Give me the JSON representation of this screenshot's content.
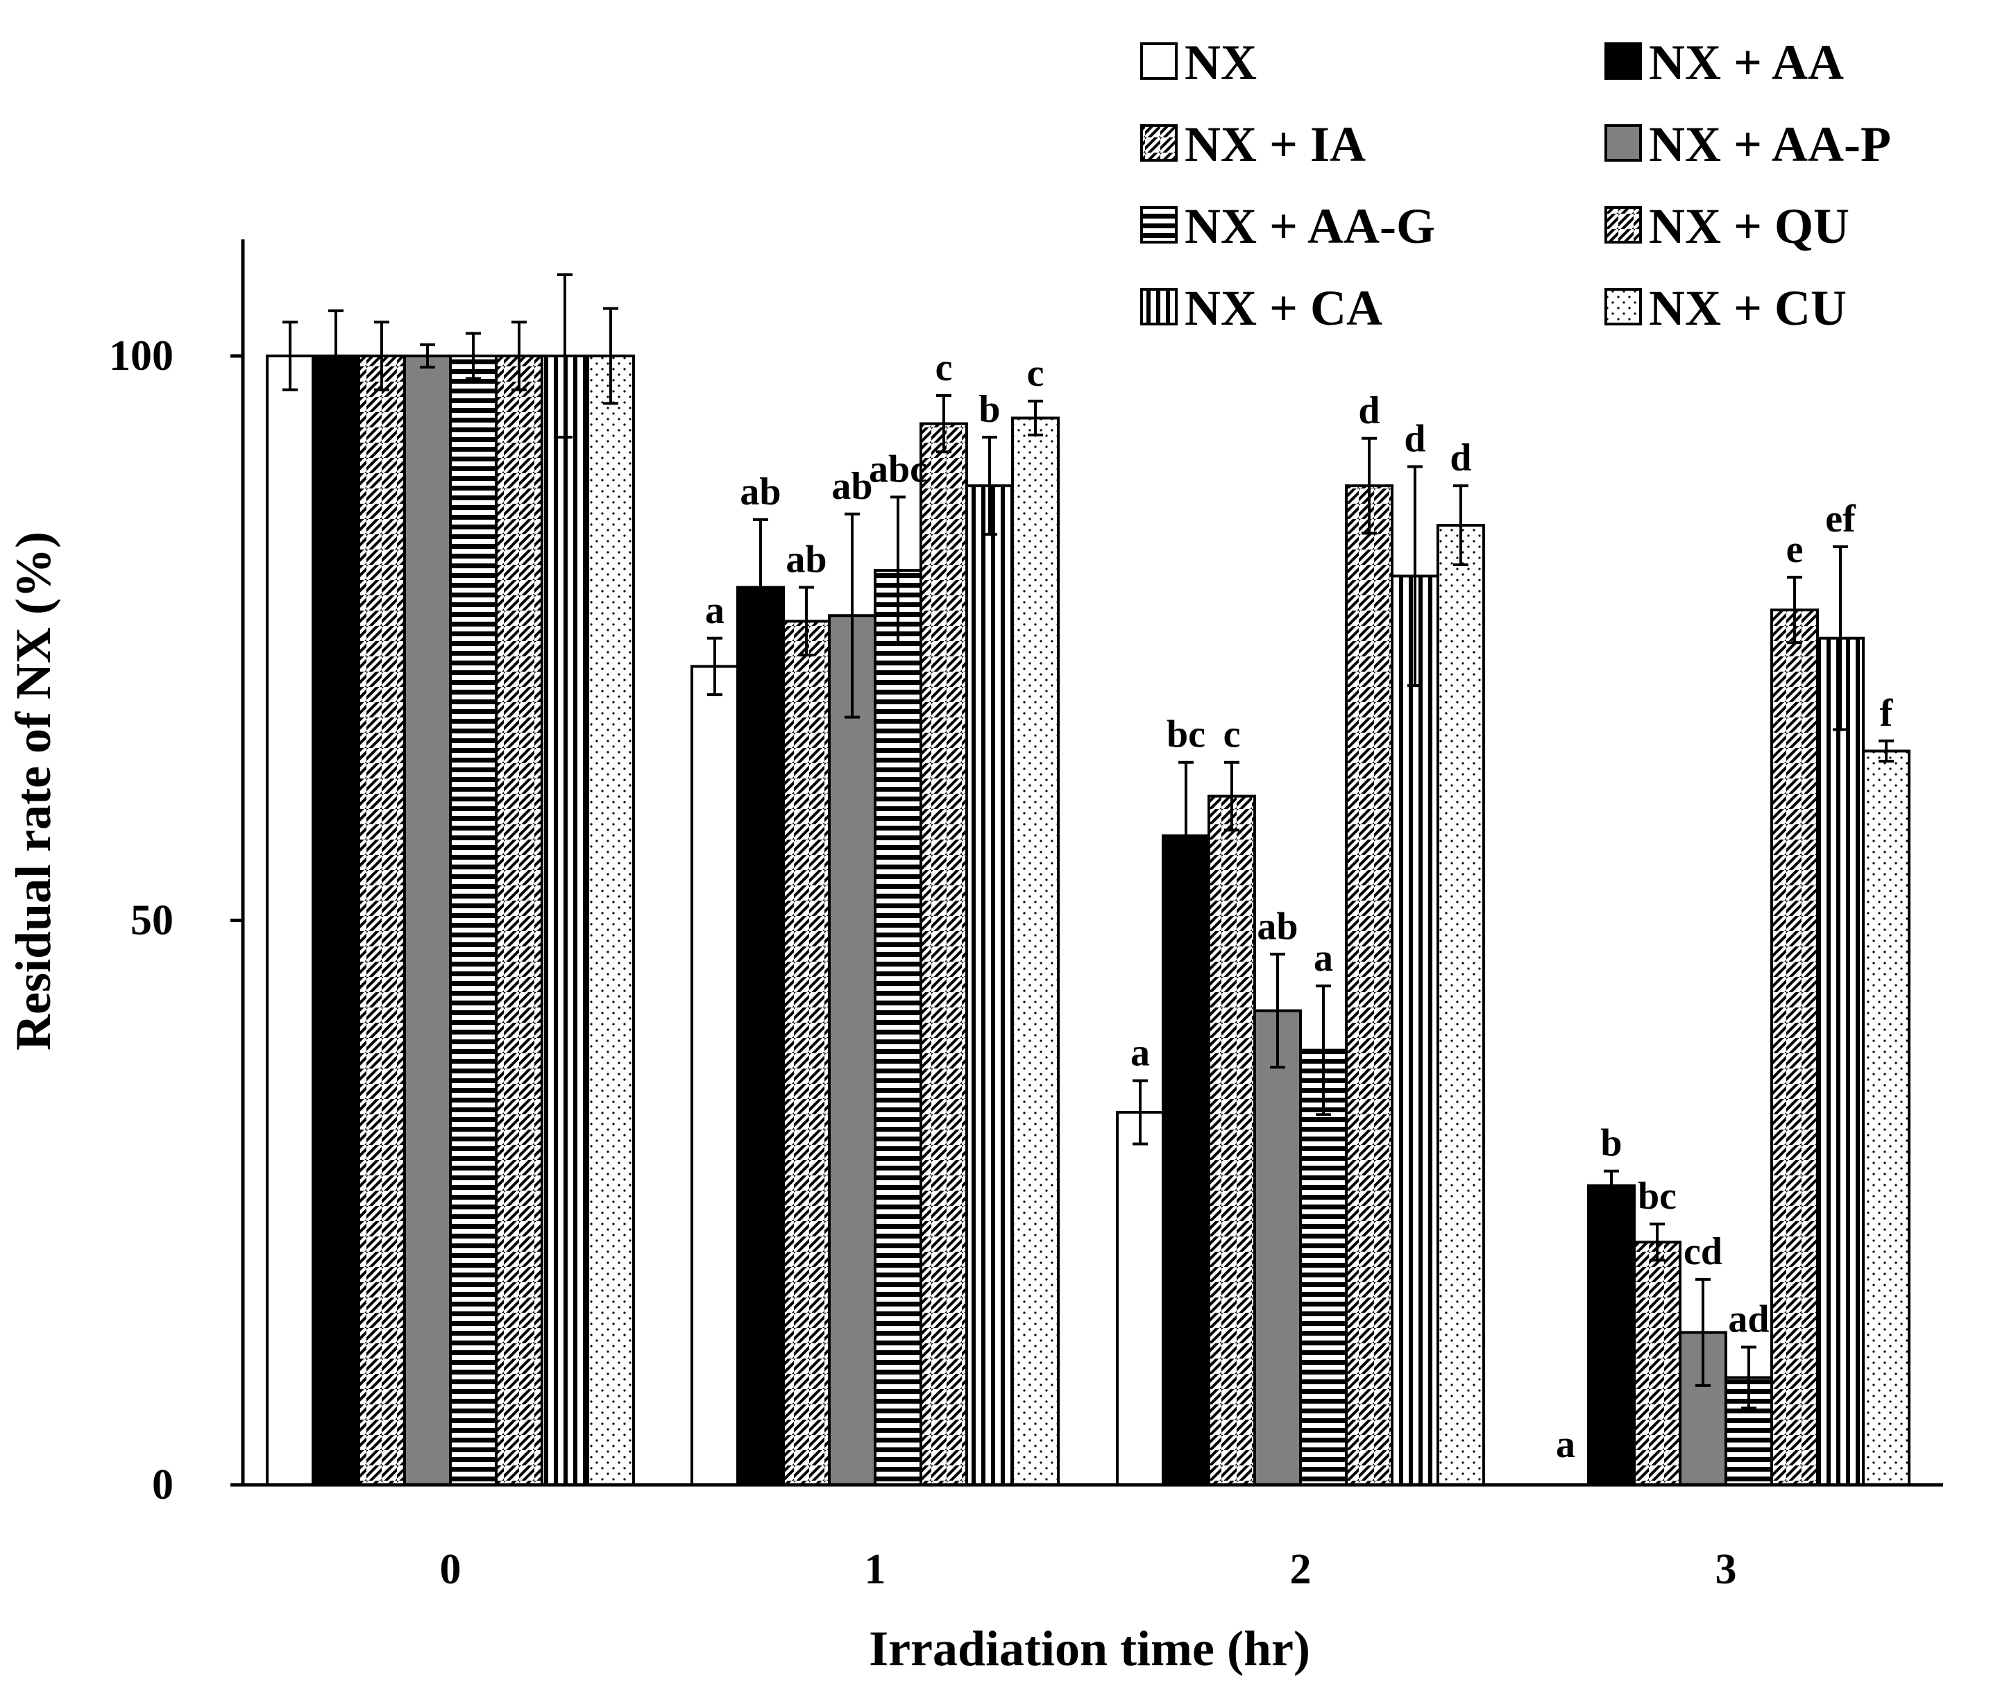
{
  "chart_data": {
    "type": "bar",
    "title": "",
    "xlabel": "Irradiation  time (hr)",
    "ylabel": "Residual rate of NX (%)",
    "ylim": [
      0,
      110
    ],
    "yticks": [
      0,
      50,
      100
    ],
    "grid": false,
    "legend_position": "top-right",
    "categories": [
      "0",
      "1",
      "2",
      "3"
    ],
    "series": [
      {
        "name": "NX",
        "pattern": "white",
        "values": [
          100,
          72.5,
          33,
          0
        ],
        "errors": [
          3,
          2.5,
          2.8,
          0
        ],
        "labels": [
          "",
          "a",
          "a",
          "a"
        ]
      },
      {
        "name": "NX + AA",
        "pattern": "black",
        "values": [
          100,
          79.5,
          57.5,
          26.5
        ],
        "errors": [
          4,
          6,
          6.5,
          1.3
        ],
        "labels": [
          "",
          "ab",
          "bc",
          "b"
        ]
      },
      {
        "name": "NX + IA",
        "pattern": "diagonal-up",
        "values": [
          100,
          76.5,
          61,
          21.5
        ],
        "errors": [
          3,
          3,
          3,
          1.6
        ],
        "labels": [
          "",
          "ab",
          "c",
          "bc"
        ]
      },
      {
        "name": "NX + AA-P",
        "pattern": "gray",
        "values": [
          100,
          77,
          42,
          13.5
        ],
        "errors": [
          1,
          9,
          5,
          4.7
        ],
        "labels": [
          "",
          "ab",
          "ab",
          "cd"
        ]
      },
      {
        "name": "NX + AA-G",
        "pattern": "horizontal",
        "values": [
          100,
          81,
          38.5,
          9.5
        ],
        "errors": [
          2,
          6.5,
          5.7,
          2.7
        ],
        "labels": [
          "",
          "abc",
          "a",
          "ad"
        ]
      },
      {
        "name": "NX + QU",
        "pattern": "diagonal-down",
        "values": [
          100,
          94,
          88.5,
          77.5
        ],
        "errors": [
          3,
          2.5,
          4.2,
          2.9
        ],
        "labels": [
          "",
          "c",
          "d",
          "e"
        ]
      },
      {
        "name": "NX + CA",
        "pattern": "vertical",
        "values": [
          100,
          88.5,
          80.5,
          75
        ],
        "errors": [
          7.2,
          4.3,
          9.7,
          8.1
        ],
        "labels": [
          "",
          "b",
          "d",
          "ef"
        ]
      },
      {
        "name": "NX + CU",
        "pattern": "dots",
        "values": [
          100,
          94.5,
          85,
          65
        ],
        "errors": [
          4.2,
          1.5,
          3.5,
          0.9
        ],
        "labels": [
          "",
          "c",
          "d",
          "f"
        ]
      }
    ]
  }
}
